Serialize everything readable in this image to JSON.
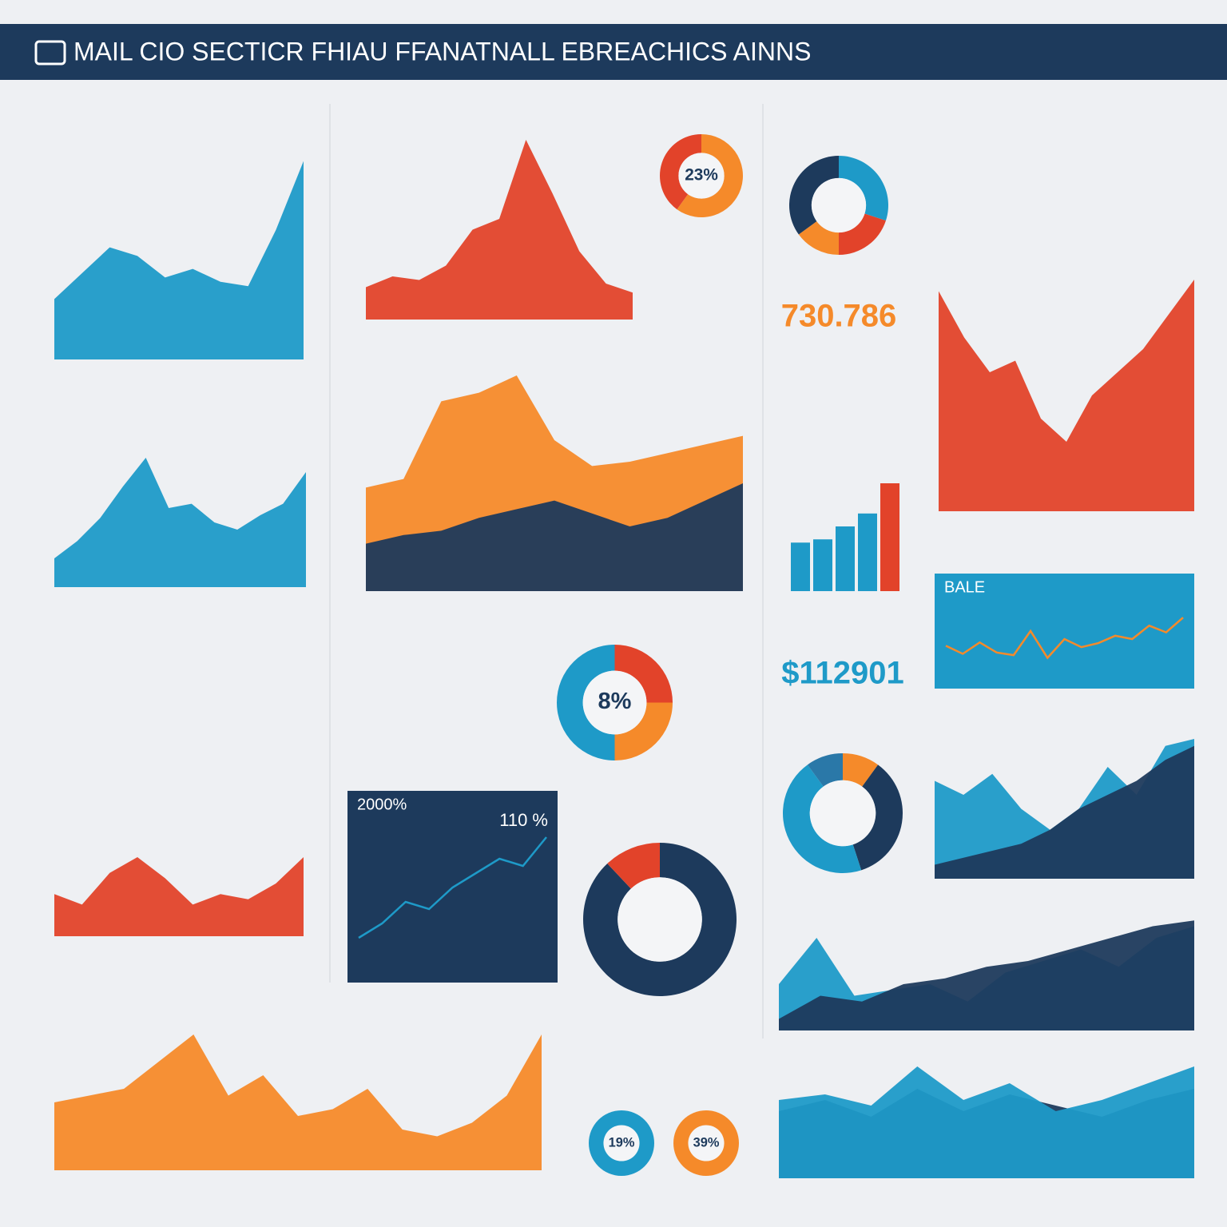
{
  "header": {
    "title": "MAIL CIO SECTICR FHIAU FFANATNALL EBREACHICS AINNS"
  },
  "chart_data": [
    {
      "type": "area",
      "ylim": [
        0,
        100
      ],
      "series": [
        {
          "color": "#1e9ac8",
          "values": [
            28,
            40,
            52,
            48,
            38,
            42,
            36,
            34,
            60,
            92
          ]
        }
      ]
    },
    {
      "type": "area",
      "ylim": [
        0,
        100
      ],
      "series": [
        {
          "color": "#e2432a",
          "values": [
            18,
            24,
            22,
            30,
            50,
            56,
            100,
            70,
            38,
            20,
            15
          ]
        }
      ]
    },
    {
      "type": "donut",
      "label": "23%",
      "values": [
        60,
        40
      ],
      "colors": [
        "#f58a2a",
        "#e2432a"
      ]
    },
    {
      "type": "donut",
      "values": [
        30,
        20,
        15,
        35
      ],
      "colors": [
        "#1e9ac8",
        "#e2432a",
        "#f58a2a",
        "#1d3a5c"
      ]
    },
    {
      "type": "stat",
      "label": "730.786",
      "color": "#f58a2a"
    },
    {
      "type": "area",
      "ylim": [
        0,
        100
      ],
      "series": [
        {
          "color": "#f58a2a",
          "values": [
            48,
            52,
            88,
            92,
            100,
            70,
            58,
            60,
            64,
            68,
            72
          ]
        },
        {
          "color": "#1d3a5c",
          "values": [
            22,
            26,
            28,
            34,
            38,
            42,
            36,
            30,
            34,
            42,
            50
          ]
        }
      ]
    },
    {
      "type": "bar",
      "ylim": [
        0,
        100
      ],
      "values": [
        45,
        48,
        60,
        72,
        100
      ],
      "colors": [
        "#1e9ac8",
        "#1e9ac8",
        "#1e9ac8",
        "#1e9ac8",
        "#e2432a"
      ]
    },
    {
      "type": "area",
      "ylim": [
        0,
        100
      ],
      "series": [
        {
          "color": "#e2432a",
          "values": [
            95,
            75,
            60,
            65,
            40,
            30,
            50,
            60,
            70,
            85,
            100
          ]
        }
      ]
    },
    {
      "type": "line",
      "ylim": [
        0,
        100
      ],
      "background": "#1e9ac8",
      "label": "BALE",
      "series": [
        {
          "color": "#f58a2a",
          "values": [
            40,
            28,
            45,
            30,
            26,
            62,
            22,
            50,
            38,
            44,
            55,
            50,
            70,
            60,
            82
          ]
        }
      ]
    },
    {
      "type": "area",
      "ylim": [
        0,
        100
      ],
      "series": [
        {
          "color": "#1e9ac8",
          "values": [
            20,
            32,
            48,
            70,
            90,
            55,
            58,
            45,
            40,
            50,
            58,
            80
          ]
        }
      ]
    },
    {
      "type": "donut",
      "label": "8%",
      "values": [
        25,
        25,
        50
      ],
      "colors": [
        "#e2432a",
        "#f58a2a",
        "#1e9ac8"
      ]
    },
    {
      "type": "stat",
      "label": "$112901",
      "color": "#1e9ac8"
    },
    {
      "type": "donut",
      "values": [
        10,
        35,
        45,
        10
      ],
      "colors": [
        "#f58a2a",
        "#1d3a5c",
        "#1e9ac8",
        "#2a78a8"
      ]
    },
    {
      "type": "area",
      "ylim": [
        0,
        100
      ],
      "series": [
        {
          "color": "#1e9ac8",
          "values": [
            70,
            60,
            75,
            50,
            35,
            50,
            80,
            60,
            95,
            100
          ]
        },
        {
          "color": "#1d3a5c",
          "values": [
            10,
            15,
            20,
            25,
            35,
            50,
            60,
            70,
            85,
            95
          ]
        }
      ]
    },
    {
      "type": "area",
      "ylim": [
        0,
        100
      ],
      "series": [
        {
          "color": "#e2432a",
          "values": [
            40,
            30,
            60,
            75,
            55,
            30,
            40,
            35,
            50,
            75
          ]
        }
      ]
    },
    {
      "type": "line",
      "ylim": [
        0,
        100
      ],
      "background": "#1d3a5c",
      "label": "2000%",
      "label2": "110 %",
      "series": [
        {
          "color": "#1e9ac8",
          "values": [
            20,
            30,
            45,
            40,
            55,
            65,
            75,
            70,
            90
          ]
        }
      ]
    },
    {
      "type": "donut",
      "values": [
        88,
        12
      ],
      "colors": [
        "#1d3a5c",
        "#e2432a"
      ]
    },
    {
      "type": "area",
      "ylim": [
        0,
        100
      ],
      "series": [
        {
          "color": "#1e9ac8",
          "values": [
            40,
            80,
            30,
            35,
            40,
            25,
            50,
            60,
            70,
            55,
            80,
            90
          ]
        },
        {
          "color": "#1d3a5c",
          "values": [
            10,
            30,
            25,
            40,
            45,
            55,
            60,
            70,
            80,
            90,
            95
          ]
        }
      ]
    },
    {
      "type": "area",
      "ylim": [
        0,
        100
      ],
      "series": [
        {
          "color": "#f58a2a",
          "values": [
            50,
            55,
            60,
            80,
            100,
            55,
            70,
            40,
            45,
            60,
            30,
            25,
            35,
            55,
            100
          ]
        }
      ]
    },
    {
      "type": "area",
      "ylim": [
        0,
        100
      ],
      "series": [
        {
          "color": "#1d3a5c",
          "values": [
            60,
            70,
            55,
            80,
            60,
            75,
            65,
            55,
            70,
            80
          ]
        },
        {
          "color": "#1e9ac8",
          "values": [
            70,
            75,
            65,
            100,
            70,
            85,
            60,
            70,
            85,
            100
          ]
        }
      ]
    },
    {
      "type": "donut",
      "label": "19%",
      "values": [
        100
      ],
      "colors": [
        "#1e9ac8"
      ]
    },
    {
      "type": "donut",
      "label": "39%",
      "values": [
        100
      ],
      "colors": [
        "#f58a2a"
      ]
    }
  ]
}
